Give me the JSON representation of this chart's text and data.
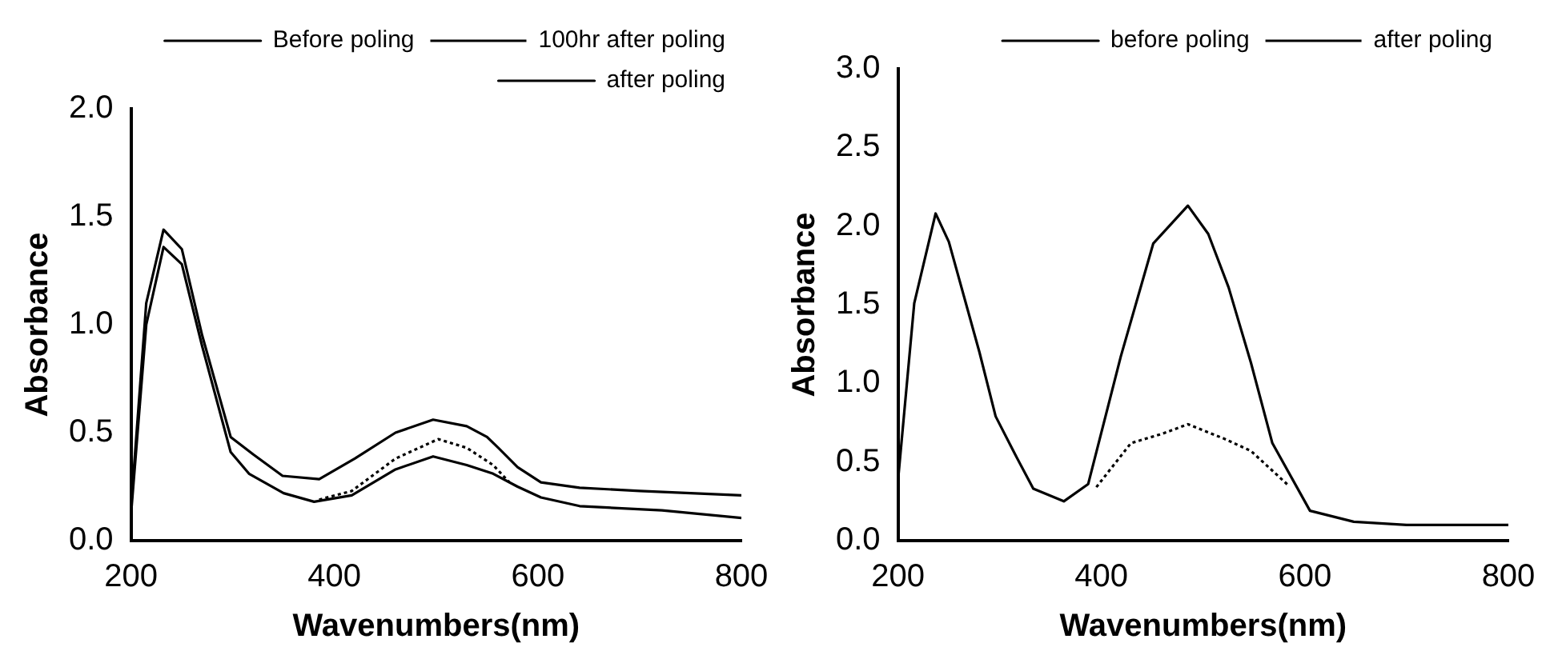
{
  "chart_data": [
    {
      "type": "line",
      "xlabel": "Wavenumbers(nm)",
      "ylabel": "Absorbance",
      "xlim": [
        200,
        800
      ],
      "xticks": [
        200,
        400,
        600,
        800
      ],
      "ylim": [
        0,
        2
      ],
      "yticks": [
        {
          "value": 0,
          "label": "0.0"
        },
        {
          "value": 0.5,
          "label": "0.5"
        },
        {
          "value": 1,
          "label": "1.0"
        },
        {
          "value": 1.5,
          "label": "1.5"
        },
        {
          "value": 2,
          "label": "2.0"
        }
      ],
      "legend": "top right",
      "grid": false,
      "marker": "none",
      "series": [
        {
          "name": "Before poling",
          "color": "#000000",
          "line_style": "solid",
          "x": [
            200,
            215,
            232,
            250,
            270,
            298,
            320,
            349,
            385,
            420,
            460,
            497,
            530,
            550,
            561,
            580,
            603,
            641,
            700,
            750,
            800
          ],
          "values": [
            0.15,
            1.1,
            1.44,
            1.35,
            0.95,
            0.48,
            0.4,
            0.3,
            0.285,
            0.38,
            0.5,
            0.56,
            0.53,
            0.48,
            0.43,
            0.34,
            0.27,
            0.245,
            0.23,
            0.22,
            0.21
          ]
        },
        {
          "name": "100hr after poling",
          "color": "#000000",
          "line_style": "dotted",
          "x": [
            385,
            417,
            460,
            502,
            530,
            556,
            572
          ],
          "values": [
            0.19,
            0.23,
            0.38,
            0.47,
            0.43,
            0.35,
            0.27
          ]
        },
        {
          "name": "after poling",
          "color": "#000000",
          "line_style": "solid",
          "x": [
            200,
            215,
            232,
            250,
            270,
            298,
            316,
            350,
            380,
            417,
            460,
            497,
            530,
            556,
            580,
            603,
            641,
            722,
            800
          ],
          "values": [
            0.12,
            1.0,
            1.36,
            1.28,
            0.9,
            0.41,
            0.31,
            0.22,
            0.18,
            0.21,
            0.33,
            0.39,
            0.35,
            0.31,
            0.25,
            0.2,
            0.16,
            0.14,
            0.105
          ]
        }
      ]
    },
    {
      "type": "line",
      "xlabel": "Wavenumbers(nm)",
      "ylabel": "Absorbance",
      "xlim": [
        200,
        800
      ],
      "xticks": [
        200,
        400,
        600,
        800
      ],
      "ylim": [
        0,
        3
      ],
      "yticks": [
        {
          "value": 0,
          "label": "0.0"
        },
        {
          "value": 0.5,
          "label": "0.5"
        },
        {
          "value": 1,
          "label": "1.0"
        },
        {
          "value": 1.5,
          "label": "1.5"
        },
        {
          "value": 2,
          "label": "2.0"
        },
        {
          "value": 2.5,
          "label": "2.5"
        },
        {
          "value": 3,
          "label": "3.0"
        }
      ],
      "legend": "top right",
      "grid": false,
      "marker": "none",
      "series": [
        {
          "name": "before poling",
          "color": "#000000",
          "line_style": "solid",
          "x": [
            200,
            216,
            237,
            250,
            280,
            296,
            315,
            333,
            363,
            387,
            419,
            451,
            485,
            505,
            525,
            547,
            568,
            605,
            648,
            700,
            800
          ],
          "values": [
            0.38,
            1.51,
            2.08,
            1.9,
            1.2,
            0.79,
            0.55,
            0.33,
            0.25,
            0.36,
            1.17,
            1.89,
            2.13,
            1.95,
            1.61,
            1.13,
            0.62,
            0.19,
            0.12,
            0.1,
            0.1
          ]
        },
        {
          "name": "after poling",
          "color": "#000000",
          "line_style": "dotted",
          "x": [
            395,
            429,
            460,
            485,
            520,
            547,
            584
          ],
          "values": [
            0.34,
            0.62,
            0.68,
            0.74,
            0.65,
            0.57,
            0.35
          ]
        }
      ]
    }
  ]
}
